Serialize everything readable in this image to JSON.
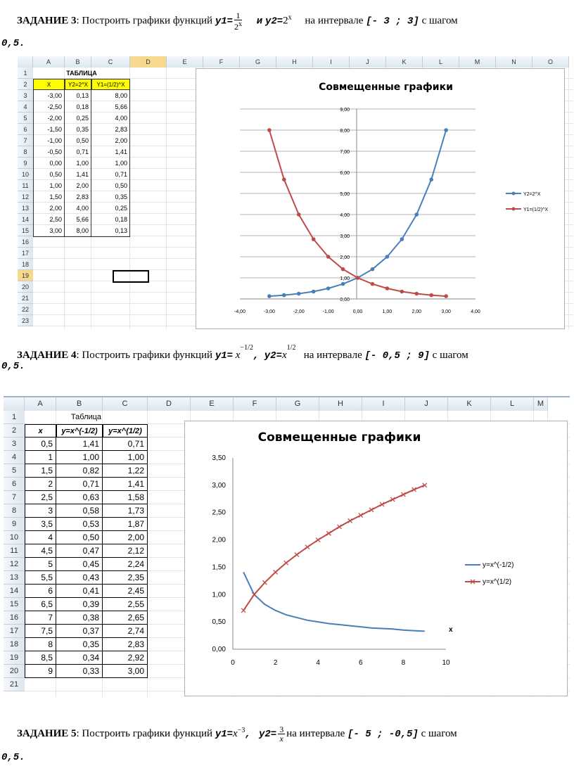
{
  "task3": {
    "label": "ЗАДАНИЕ 3",
    "text": ": Построить графики функций ",
    "y1": "y1=",
    "frac_num": "1",
    "frac_den": "2",
    "frac_den_exp": "x",
    "and": "и",
    "y2": "y2=",
    "y2_base": "2",
    "y2_exp": "x",
    "interval_text": "на интервале",
    "interval": "[- 3 ; 3]",
    "step_text": "с шагом",
    "step": "0,5."
  },
  "task4": {
    "label": "ЗАДАНИЕ 4",
    "text": ": Построить графики функций ",
    "y1": "y1=",
    "y1_base": "x",
    "y1_exp": "−1/2",
    "comma": ",",
    "y2": "y2=",
    "y2_base": "x",
    "y2_exp": "1/2",
    "interval_text": "на интервале",
    "interval": "[- 0,5 ; 9]",
    "step_text": "с шагом",
    "step": "0,5."
  },
  "task5": {
    "label": "ЗАДАНИЕ 5",
    "text": ": Построить графики функций ",
    "y1": "y1=",
    "y1_base": "x",
    "y1_exp": "−3",
    "comma": ",",
    "y2": "y2=",
    "frac_num": "3",
    "frac_den": "x",
    "interval_text": "на интервале",
    "interval": "[- 5 ; -0,5]",
    "step_text": "с шагом",
    "step": "0,5."
  },
  "sheet1": {
    "columns": [
      "A",
      "B",
      "C",
      "D",
      "E",
      "F",
      "G",
      "H",
      "I",
      "J",
      "K",
      "L",
      "M",
      "N",
      "O"
    ],
    "rows": [
      "1",
      "2",
      "3",
      "4",
      "5",
      "6",
      "7",
      "8",
      "9",
      "10",
      "11",
      "12",
      "13",
      "14",
      "15",
      "16",
      "17",
      "18",
      "19",
      "20",
      "21",
      "22",
      "23"
    ],
    "table_title": "ТАБЛИЦА",
    "headers": [
      "X",
      "Y2=2^X",
      "Y1=(1/2)^X"
    ],
    "data": [
      [
        "-3,00",
        "0,13",
        "8,00"
      ],
      [
        "-2,50",
        "0,18",
        "5,66"
      ],
      [
        "-2,00",
        "0,25",
        "4,00"
      ],
      [
        "-1,50",
        "0,35",
        "2,83"
      ],
      [
        "-1,00",
        "0,50",
        "2,00"
      ],
      [
        "-0,50",
        "0,71",
        "1,41"
      ],
      [
        "0,00",
        "1,00",
        "1,00"
      ],
      [
        "0,50",
        "1,41",
        "0,71"
      ],
      [
        "1,00",
        "2,00",
        "0,50"
      ],
      [
        "1,50",
        "2,83",
        "0,35"
      ],
      [
        "2,00",
        "4,00",
        "0,25"
      ],
      [
        "2,50",
        "5,66",
        "0,18"
      ],
      [
        "3,00",
        "8,00",
        "0,13"
      ]
    ]
  },
  "sheet2": {
    "columns": [
      "A",
      "B",
      "C",
      "D",
      "E",
      "F",
      "G",
      "H",
      "I",
      "J",
      "K",
      "L",
      "M"
    ],
    "rows": [
      "1",
      "2",
      "3",
      "4",
      "5",
      "6",
      "7",
      "8",
      "9",
      "10",
      "11",
      "12",
      "13",
      "14",
      "15",
      "16",
      "17",
      "18",
      "19",
      "20",
      "21"
    ],
    "table_title": "Таблица",
    "headers": [
      "x",
      "y=x^(-1/2)",
      "y=x^(1/2)"
    ],
    "data": [
      [
        "0,5",
        "1,41",
        "0,71"
      ],
      [
        "1",
        "1,00",
        "1,00"
      ],
      [
        "1,5",
        "0,82",
        "1,22"
      ],
      [
        "2",
        "0,71",
        "1,41"
      ],
      [
        "2,5",
        "0,63",
        "1,58"
      ],
      [
        "3",
        "0,58",
        "1,73"
      ],
      [
        "3,5",
        "0,53",
        "1,87"
      ],
      [
        "4",
        "0,50",
        "2,00"
      ],
      [
        "4,5",
        "0,47",
        "2,12"
      ],
      [
        "5",
        "0,45",
        "2,24"
      ],
      [
        "5,5",
        "0,43",
        "2,35"
      ],
      [
        "6",
        "0,41",
        "2,45"
      ],
      [
        "6,5",
        "0,39",
        "2,55"
      ],
      [
        "7",
        "0,38",
        "2,65"
      ],
      [
        "7,5",
        "0,37",
        "2,74"
      ],
      [
        "8",
        "0,35",
        "2,83"
      ],
      [
        "8,5",
        "0,34",
        "2,92"
      ],
      [
        "9",
        "0,33",
        "3,00"
      ]
    ]
  },
  "chart_data": [
    {
      "type": "line",
      "title": "Совмещенные графики",
      "x": [
        -3,
        -2.5,
        -2,
        -1.5,
        -1,
        -0.5,
        0,
        0.5,
        1,
        1.5,
        2,
        2.5,
        3
      ],
      "series": [
        {
          "name": "Y2=2^X",
          "color": "#4a7ebb",
          "values": [
            0.13,
            0.18,
            0.25,
            0.35,
            0.5,
            0.71,
            1,
            1.41,
            2,
            2.83,
            4,
            5.66,
            8
          ]
        },
        {
          "name": "Y1=(1/2)^X",
          "color": "#be4b48",
          "values": [
            8,
            5.66,
            4,
            2.83,
            2,
            1.41,
            1,
            0.71,
            0.5,
            0.35,
            0.25,
            0.18,
            0.13
          ]
        }
      ],
      "xlim": [
        -4,
        4
      ],
      "ylim": [
        0,
        9
      ],
      "xticks": [
        "-4,00",
        "-3,00",
        "-2,00",
        "-1,00",
        "0,00",
        "1,00",
        "2,00",
        "3,00",
        "4,00"
      ],
      "yticks": [
        "0,00",
        "1,00",
        "2,00",
        "3,00",
        "4,00",
        "5,00",
        "6,00",
        "7,00",
        "8,00",
        "9,00"
      ],
      "legend": "right",
      "grid": true
    },
    {
      "type": "line",
      "title": "Совмещенные графики",
      "x": [
        0.5,
        1,
        1.5,
        2,
        2.5,
        3,
        3.5,
        4,
        4.5,
        5,
        5.5,
        6,
        6.5,
        7,
        7.5,
        8,
        8.5,
        9
      ],
      "series": [
        {
          "name": "y=x^(-1/2)",
          "color": "#4a7ebb",
          "values": [
            1.41,
            1,
            0.82,
            0.71,
            0.63,
            0.58,
            0.53,
            0.5,
            0.47,
            0.45,
            0.43,
            0.41,
            0.39,
            0.38,
            0.37,
            0.35,
            0.34,
            0.33
          ]
        },
        {
          "name": "y=x^(1/2)",
          "color": "#be4b48",
          "values": [
            0.71,
            1,
            1.22,
            1.41,
            1.58,
            1.73,
            1.87,
            2,
            2.12,
            2.24,
            2.35,
            2.45,
            2.55,
            2.65,
            2.74,
            2.83,
            2.92,
            3
          ]
        }
      ],
      "xlim": [
        0,
        10
      ],
      "ylim": [
        0,
        3.5
      ],
      "xticks": [
        "0",
        "2",
        "4",
        "6",
        "8",
        "10"
      ],
      "yticks": [
        "0,00",
        "0,50",
        "1,00",
        "1,50",
        "2,00",
        "2,50",
        "3,00",
        "3,50"
      ],
      "axis_label_x": "x",
      "legend": "right",
      "grid": false
    }
  ]
}
